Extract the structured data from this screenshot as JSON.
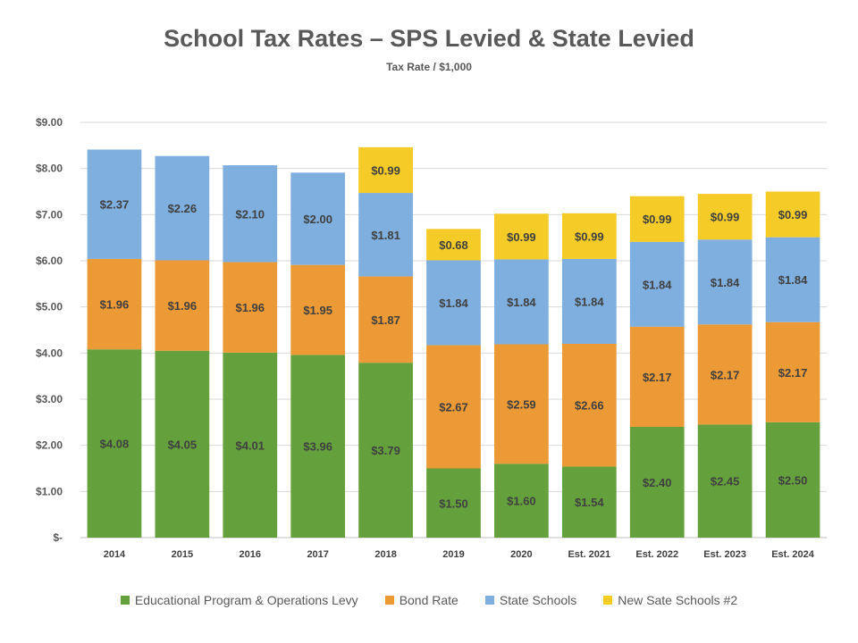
{
  "chart_data": {
    "type": "bar",
    "stacked": true,
    "title": "School Tax Rates – SPS Levied & State Levied",
    "subtitle": "Tax Rate / $1,000",
    "xlabel": "",
    "ylabel": "",
    "ylim": [
      0,
      9
    ],
    "yticks": [
      "$-",
      "$1.00",
      "$2.00",
      "$3.00",
      "$4.00",
      "$5.00",
      "$6.00",
      "$7.00",
      "$8.00",
      "$9.00"
    ],
    "grid": true,
    "legend_position": "bottom",
    "categories": [
      "2014",
      "2015",
      "2016",
      "2017",
      "2018",
      "2019",
      "2020",
      "Est. 2021",
      "Est. 2022",
      "Est. 2023",
      "Est. 2024"
    ],
    "series": [
      {
        "name": "Educational Program & Operations Levy",
        "color": "#64A13C",
        "values": [
          4.08,
          4.05,
          4.01,
          3.96,
          3.79,
          1.5,
          1.6,
          1.54,
          2.4,
          2.45,
          2.5
        ],
        "labels": [
          "$4.08",
          "$4.05",
          "$4.01",
          "$3.96",
          "$3.79",
          "$1.50",
          "$1.60",
          "$1.54",
          "$2.40",
          "$2.45",
          "$2.50"
        ]
      },
      {
        "name": "Bond Rate",
        "color": "#EC9A35",
        "values": [
          1.96,
          1.96,
          1.96,
          1.95,
          1.87,
          2.67,
          2.59,
          2.66,
          2.17,
          2.17,
          2.17
        ],
        "labels": [
          "$1.96",
          "$1.96",
          "$1.96",
          "$1.95",
          "$1.87",
          "$2.67",
          "$2.59",
          "$2.66",
          "$2.17",
          "$2.17",
          "$2.17"
        ]
      },
      {
        "name": "State Schools",
        "color": "#7EAFDE",
        "values": [
          2.37,
          2.26,
          2.1,
          2.0,
          1.81,
          1.84,
          1.84,
          1.84,
          1.84,
          1.84,
          1.84
        ],
        "labels": [
          "$2.37",
          "$2.26",
          "$2.10",
          "$2.00",
          "$1.81",
          "$1.84",
          "$1.84",
          "$1.84",
          "$1.84",
          "$1.84",
          "$1.84"
        ]
      },
      {
        "name": "New Sate Schools #2",
        "color": "#F5CB28",
        "values": [
          0,
          0,
          0,
          0,
          0.99,
          0.68,
          0.99,
          0.99,
          0.99,
          0.99,
          0.99
        ],
        "labels": [
          "",
          "",
          "",
          "",
          "$0.99",
          "$0.68",
          "$0.99",
          "$0.99",
          "$0.99",
          "$0.99",
          "$0.99"
        ]
      }
    ]
  }
}
